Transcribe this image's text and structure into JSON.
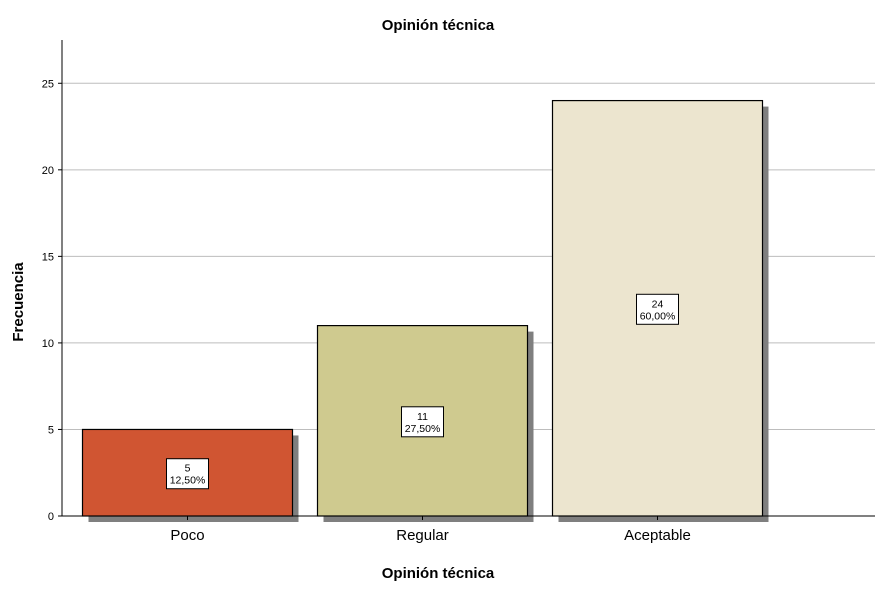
{
  "chart_data": {
    "type": "bar",
    "title": "Opinión técnica",
    "xlabel": "Opinión técnica",
    "ylabel": "Frecuencia",
    "categories": [
      "Poco",
      "Regular",
      "Aceptable"
    ],
    "values": [
      5,
      11,
      24
    ],
    "percent_labels": [
      "12,50%",
      "27,50%",
      "60,00%"
    ],
    "bar_colors": [
      "#d05532",
      "#cfca8f",
      "#ece5cf"
    ],
    "ylim": [
      0,
      27.5
    ],
    "yticks": [
      0,
      5,
      10,
      15,
      20,
      25
    ],
    "grid": true
  }
}
